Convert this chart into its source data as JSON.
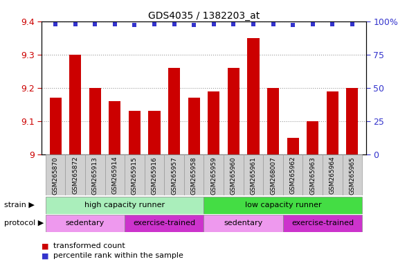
{
  "title": "GDS4035 / 1382203_at",
  "samples": [
    "GSM265870",
    "GSM265872",
    "GSM265913",
    "GSM265914",
    "GSM265915",
    "GSM265916",
    "GSM265957",
    "GSM265958",
    "GSM265959",
    "GSM265960",
    "GSM265961",
    "GSM268007",
    "GSM265962",
    "GSM265963",
    "GSM265964",
    "GSM265965"
  ],
  "bar_values": [
    9.17,
    9.3,
    9.2,
    9.16,
    9.13,
    9.13,
    9.26,
    9.17,
    9.19,
    9.26,
    9.35,
    9.2,
    9.05,
    9.1,
    9.19,
    9.2
  ],
  "percentile_values": [
    98,
    98,
    98,
    98,
    97,
    98,
    98,
    97,
    98,
    98,
    98,
    98,
    97,
    98,
    98,
    98
  ],
  "bar_color": "#cc0000",
  "dot_color": "#3333cc",
  "ylim_left": [
    9.0,
    9.4
  ],
  "ylim_right": [
    0,
    100
  ],
  "yticks_left": [
    9.0,
    9.1,
    9.2,
    9.3,
    9.4
  ],
  "ytick_labels_left": [
    "9",
    "9.1",
    "9.2",
    "9.3",
    "9.4"
  ],
  "yticks_right": [
    0,
    25,
    50,
    75,
    100
  ],
  "ytick_labels_right": [
    "0",
    "25",
    "50",
    "75",
    "100%"
  ],
  "strain_groups": [
    {
      "label": "high capacity runner",
      "start": 0,
      "end": 8,
      "color": "#aaeebb"
    },
    {
      "label": "low capacity runner",
      "start": 8,
      "end": 16,
      "color": "#44dd44"
    }
  ],
  "protocol_groups": [
    {
      "label": "sedentary",
      "start": 0,
      "end": 4,
      "color": "#ee99ee"
    },
    {
      "label": "exercise-trained",
      "start": 4,
      "end": 8,
      "color": "#cc33cc"
    },
    {
      "label": "sedentary",
      "start": 8,
      "end": 12,
      "color": "#ee99ee"
    },
    {
      "label": "exercise-trained",
      "start": 12,
      "end": 16,
      "color": "#cc33cc"
    }
  ],
  "strain_label": "strain",
  "protocol_label": "protocol",
  "legend_items": [
    {
      "color": "#cc0000",
      "label": "transformed count"
    },
    {
      "color": "#3333cc",
      "label": "percentile rank within the sample"
    }
  ],
  "tick_color_left": "#cc0000",
  "tick_color_right": "#3333cc",
  "bar_width": 0.6,
  "grid_color": "#999999",
  "bg_color": "#ffffff",
  "xtick_bg": "#d0d0d0",
  "xtick_border": "#999999"
}
